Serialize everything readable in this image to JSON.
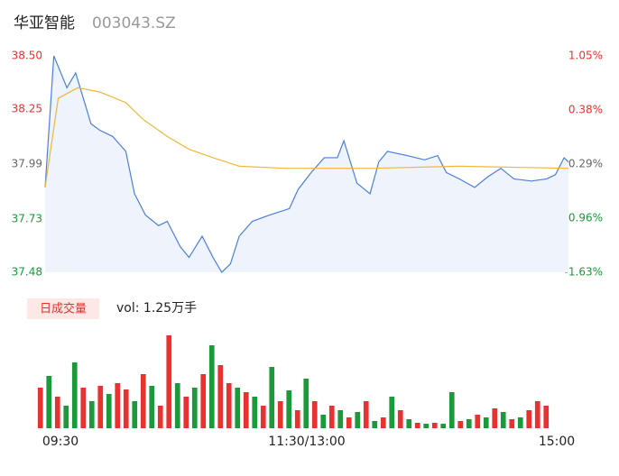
{
  "chart_data": {
    "type": "line",
    "title": "华亚智能",
    "subtitle": "003043.SZ",
    "xlim": [
      0,
      240
    ],
    "xticks": [
      {
        "value": 0,
        "label": "09:30"
      },
      {
        "value": 120,
        "label": "11:30/13:00"
      },
      {
        "value": 240,
        "label": "15:00"
      }
    ],
    "ylim": [
      37.48,
      38.5
    ],
    "yticks": [
      {
        "value": 38.5,
        "label": "38.50"
      },
      38.25,
      37.99,
      37.73,
      37.48
    ],
    "y2lim": [
      -1.63,
      1.05
    ],
    "y2ticks": [
      {
        "value": 1.05,
        "label": "1.05%"
      },
      {
        "value": 0.38,
        "label": "0.38%"
      },
      {
        "value": -0.29,
        "label": "-0.29%"
      },
      {
        "value": -0.96,
        "label": "-0.96%"
      },
      {
        "value": -1.63,
        "label": "-1.63%"
      }
    ],
    "up_color": "#e8322f",
    "flat_color": "#666666",
    "down_color": "#1a9a3a",
    "series": [
      {
        "color": "#4a7fe0",
        "fill": "#eef3fc",
        "x": [
          0,
          4,
          6,
          10,
          14,
          19,
          21,
          25,
          31,
          37,
          41,
          46,
          52,
          56,
          62,
          66,
          72,
          77,
          81,
          85,
          89,
          95,
          103,
          112,
          116,
          122,
          128,
          134,
          137,
          143,
          149,
          153,
          157,
          166,
          174,
          180,
          184,
          190,
          197,
          203,
          209,
          215,
          223,
          230,
          234,
          238,
          240
        ],
        "values": [
          37.88,
          38.5,
          38.45,
          38.35,
          38.42,
          38.25,
          38.18,
          38.15,
          38.12,
          38.05,
          37.85,
          37.75,
          37.7,
          37.72,
          37.6,
          37.55,
          37.65,
          37.55,
          37.48,
          37.52,
          37.65,
          37.72,
          37.75,
          37.78,
          37.87,
          37.95,
          38.02,
          38.02,
          38.1,
          37.9,
          37.85,
          38.0,
          38.05,
          38.03,
          38.01,
          38.03,
          37.95,
          37.92,
          37.88,
          37.93,
          37.97,
          37.92,
          37.91,
          37.92,
          37.94,
          38.02,
          38.0
        ]
      },
      {
        "color": "#f0b73a",
        "x": [
          0,
          6,
          15,
          25,
          37,
          45,
          56,
          66,
          77,
          89,
          110,
          150,
          190,
          240
        ],
        "values": [
          37.88,
          38.3,
          38.35,
          38.33,
          38.28,
          38.2,
          38.12,
          38.06,
          38.02,
          37.98,
          37.97,
          37.97,
          37.98,
          37.97
        ]
      }
    ],
    "volume": {
      "label": "日成交量",
      "caption": "vol: 1.25万手",
      "vlim": [
        0,
        105
      ],
      "values": [
        45,
        58,
        35,
        25,
        73,
        45,
        30,
        47,
        38,
        50,
        43,
        30,
        60,
        47,
        25,
        103,
        50,
        35,
        45,
        60,
        92,
        70,
        50,
        45,
        40,
        35,
        25,
        68,
        30,
        42,
        20,
        55,
        30,
        15,
        25,
        20,
        12,
        18,
        30,
        8,
        12,
        35,
        20,
        10,
        6,
        5,
        6,
        5,
        40,
        8,
        10,
        15,
        12,
        22,
        18,
        10,
        12,
        20,
        30,
        25
      ],
      "colors": [
        "#e8322f",
        "#1a9a3a",
        "#e8322f",
        "#1a9a3a",
        "#1a9a3a",
        "#e8322f",
        "#1a9a3a",
        "#e8322f",
        "#1a9a3a",
        "#e8322f",
        "#e8322f",
        "#1a9a3a",
        "#e8322f",
        "#1a9a3a",
        "#e8322f",
        "#e8322f",
        "#1a9a3a",
        "#e8322f",
        "#1a9a3a",
        "#e8322f",
        "#1a9a3a",
        "#e8322f",
        "#e8322f",
        "#1a9a3a",
        "#e8322f",
        "#1a9a3a",
        "#e8322f",
        "#1a9a3a",
        "#e8322f",
        "#1a9a3a",
        "#e8322f",
        "#1a9a3a",
        "#e8322f",
        "#1a9a3a",
        "#e8322f",
        "#1a9a3a",
        "#e8322f",
        "#1a9a3a",
        "#e8322f",
        "#1a9a3a",
        "#e8322f",
        "#1a9a3a",
        "#e8322f",
        "#1a9a3a",
        "#e8322f",
        "#1a9a3a",
        "#e8322f",
        "#1a9a3a",
        "#1a9a3a",
        "#e8322f",
        "#1a9a3a",
        "#e8322f",
        "#1a9a3a",
        "#e8322f",
        "#1a9a3a",
        "#e8322f",
        "#1a9a3a",
        "#e8322f",
        "#e8322f",
        "#e8322f"
      ]
    }
  }
}
